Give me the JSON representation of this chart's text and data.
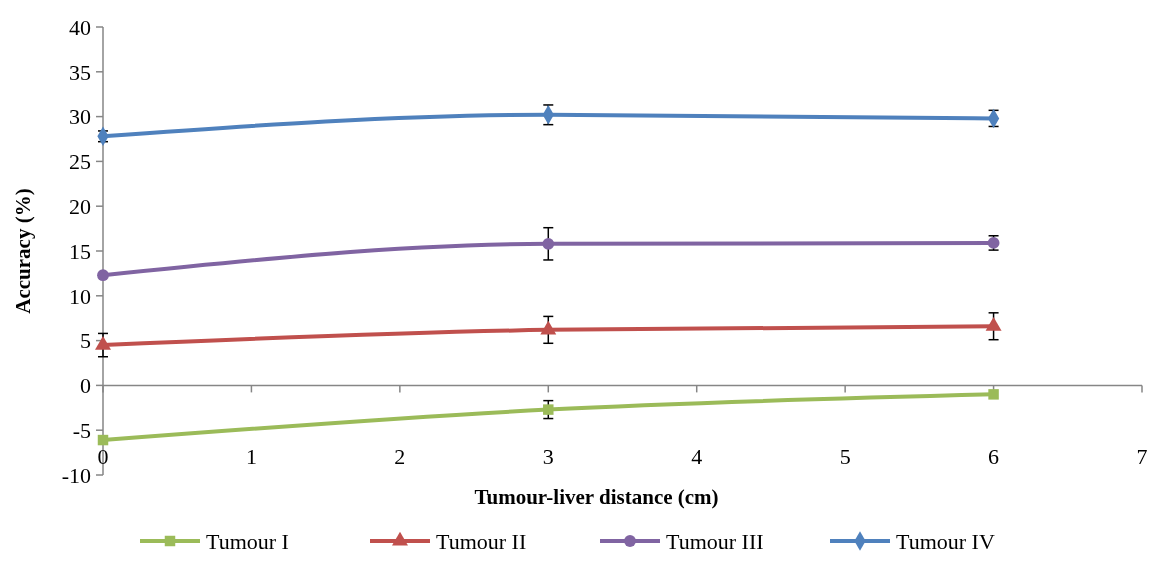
{
  "chart_data": {
    "type": "line",
    "xlabel": "Tumour-liver distance (cm)",
    "ylabel": "Accuracy (%)",
    "x": [
      0,
      3,
      6
    ],
    "xlim": [
      0,
      7
    ],
    "xticks": [
      0,
      1,
      2,
      3,
      4,
      5,
      6,
      7
    ],
    "ylim": [
      -10,
      40
    ],
    "yticks": [
      -10,
      -5,
      0,
      5,
      10,
      15,
      20,
      25,
      30,
      35,
      40
    ],
    "legend": "bottom",
    "series": [
      {
        "name": "Tumour I",
        "color": "#9bbb59",
        "marker": "square",
        "values": [
          -6.1,
          -2.7,
          -1.0
        ],
        "errors": [
          null,
          1.0,
          null
        ]
      },
      {
        "name": "Tumour II",
        "color": "#c0504d",
        "marker": "triangle",
        "values": [
          4.5,
          6.2,
          6.6
        ],
        "errors": [
          1.3,
          1.5,
          1.5
        ]
      },
      {
        "name": "Tumour III",
        "color": "#8064a2",
        "marker": "circle",
        "values": [
          12.3,
          15.8,
          15.9
        ],
        "errors": [
          null,
          1.8,
          0.8
        ]
      },
      {
        "name": "Tumour IV",
        "color": "#4f81bd",
        "marker": "diamond",
        "values": [
          27.8,
          30.2,
          29.8
        ],
        "errors": [
          0.6,
          1.1,
          0.9
        ]
      }
    ]
  }
}
